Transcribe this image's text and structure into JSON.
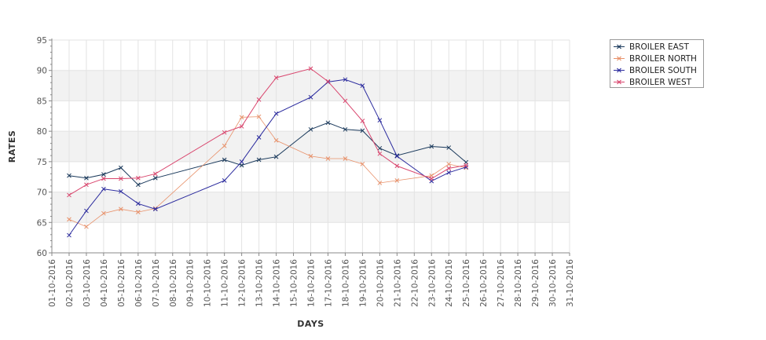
{
  "chart_data": {
    "type": "line",
    "title": "",
    "xlabel": "DAYS",
    "ylabel": "RATES",
    "ylim": [
      60,
      95
    ],
    "y_ticks": [
      60,
      65,
      70,
      75,
      80,
      85,
      90,
      95
    ],
    "x_label_format": "DD-10-2016",
    "x_tick_labels": [
      "01-10-2016",
      "02-10-2016",
      "03-10-2016",
      "04-10-2016",
      "05-10-2016",
      "06-10-2016",
      "07-10-2016",
      "08-10-2016",
      "09-10-2016",
      "10-10-2016",
      "11-10-2016",
      "12-10-2016",
      "13-10-2016",
      "14-10-2016",
      "15-10-2016",
      "16-10-2016",
      "17-10-2016",
      "18-10-2016",
      "19-10-2016",
      "20-10-2016",
      "21-10-2016",
      "22-10-2016",
      "23-10-2016",
      "24-10-2016",
      "25-10-2016",
      "26-10-2016",
      "27-10-2016",
      "28-10-2016",
      "29-10-2016",
      "30-10-2016",
      "31-10-2016"
    ],
    "xlim": [
      "01-10-2016",
      "31-10-2016"
    ],
    "grid": true,
    "banded_background": true,
    "marker": "x",
    "legend_position": "top-right",
    "series": [
      {
        "name": "BROILER EAST",
        "color": "#1b3a5c",
        "points": [
          [
            "02-10-2016",
            72.7
          ],
          [
            "03-10-2016",
            72.3
          ],
          [
            "04-10-2016",
            72.9
          ],
          [
            "05-10-2016",
            74.0
          ],
          [
            "06-10-2016",
            71.2
          ],
          [
            "07-10-2016",
            72.3
          ],
          [
            "11-10-2016",
            75.3
          ],
          [
            "12-10-2016",
            74.4
          ],
          [
            "13-10-2016",
            75.3
          ],
          [
            "14-10-2016",
            75.8
          ],
          [
            "16-10-2016",
            80.3
          ],
          [
            "17-10-2016",
            81.4
          ],
          [
            "18-10-2016",
            80.3
          ],
          [
            "19-10-2016",
            80.1
          ],
          [
            "20-10-2016",
            77.2
          ],
          [
            "21-10-2016",
            76.0
          ],
          [
            "23-10-2016",
            77.5
          ],
          [
            "24-10-2016",
            77.3
          ],
          [
            "25-10-2016",
            74.9
          ]
        ]
      },
      {
        "name": "BROILER NORTH",
        "color": "#e8916a",
        "points": [
          [
            "02-10-2016",
            65.5
          ],
          [
            "03-10-2016",
            64.3
          ],
          [
            "04-10-2016",
            66.5
          ],
          [
            "05-10-2016",
            67.2
          ],
          [
            "06-10-2016",
            66.7
          ],
          [
            "07-10-2016",
            67.3
          ],
          [
            "11-10-2016",
            77.6
          ],
          [
            "12-10-2016",
            82.3
          ],
          [
            "13-10-2016",
            82.4
          ],
          [
            "14-10-2016",
            78.5
          ],
          [
            "16-10-2016",
            75.9
          ],
          [
            "17-10-2016",
            75.5
          ],
          [
            "18-10-2016",
            75.5
          ],
          [
            "19-10-2016",
            74.6
          ],
          [
            "20-10-2016",
            71.5
          ],
          [
            "21-10-2016",
            71.9
          ],
          [
            "23-10-2016",
            72.7
          ],
          [
            "24-10-2016",
            74.6
          ],
          [
            "25-10-2016",
            74.0
          ]
        ]
      },
      {
        "name": "BROILER SOUTH",
        "color": "#2b2b9e",
        "points": [
          [
            "02-10-2016",
            62.9
          ],
          [
            "03-10-2016",
            66.9
          ],
          [
            "04-10-2016",
            70.5
          ],
          [
            "05-10-2016",
            70.1
          ],
          [
            "06-10-2016",
            68.1
          ],
          [
            "07-10-2016",
            67.2
          ],
          [
            "11-10-2016",
            71.9
          ],
          [
            "12-10-2016",
            75.0
          ],
          [
            "13-10-2016",
            79.0
          ],
          [
            "14-10-2016",
            82.9
          ],
          [
            "16-10-2016",
            85.6
          ],
          [
            "17-10-2016",
            88.1
          ],
          [
            "18-10-2016",
            88.5
          ],
          [
            "19-10-2016",
            87.5
          ],
          [
            "20-10-2016",
            81.8
          ],
          [
            "21-10-2016",
            75.9
          ],
          [
            "23-10-2016",
            71.8
          ],
          [
            "24-10-2016",
            73.2
          ],
          [
            "25-10-2016",
            74.1
          ]
        ]
      },
      {
        "name": "BROILER WEST",
        "color": "#d9466e",
        "points": [
          [
            "02-10-2016",
            69.5
          ],
          [
            "03-10-2016",
            71.2
          ],
          [
            "04-10-2016",
            72.2
          ],
          [
            "05-10-2016",
            72.2
          ],
          [
            "06-10-2016",
            72.3
          ],
          [
            "07-10-2016",
            73.0
          ],
          [
            "11-10-2016",
            79.8
          ],
          [
            "12-10-2016",
            80.8
          ],
          [
            "13-10-2016",
            85.2
          ],
          [
            "14-10-2016",
            88.8
          ],
          [
            "16-10-2016",
            90.3
          ],
          [
            "17-10-2016",
            88.2
          ],
          [
            "18-10-2016",
            85.0
          ],
          [
            "19-10-2016",
            81.7
          ],
          [
            "20-10-2016",
            76.3
          ],
          [
            "21-10-2016",
            74.3
          ],
          [
            "23-10-2016",
            72.2
          ],
          [
            "24-10-2016",
            73.9
          ],
          [
            "25-10-2016",
            74.4
          ]
        ]
      }
    ]
  }
}
